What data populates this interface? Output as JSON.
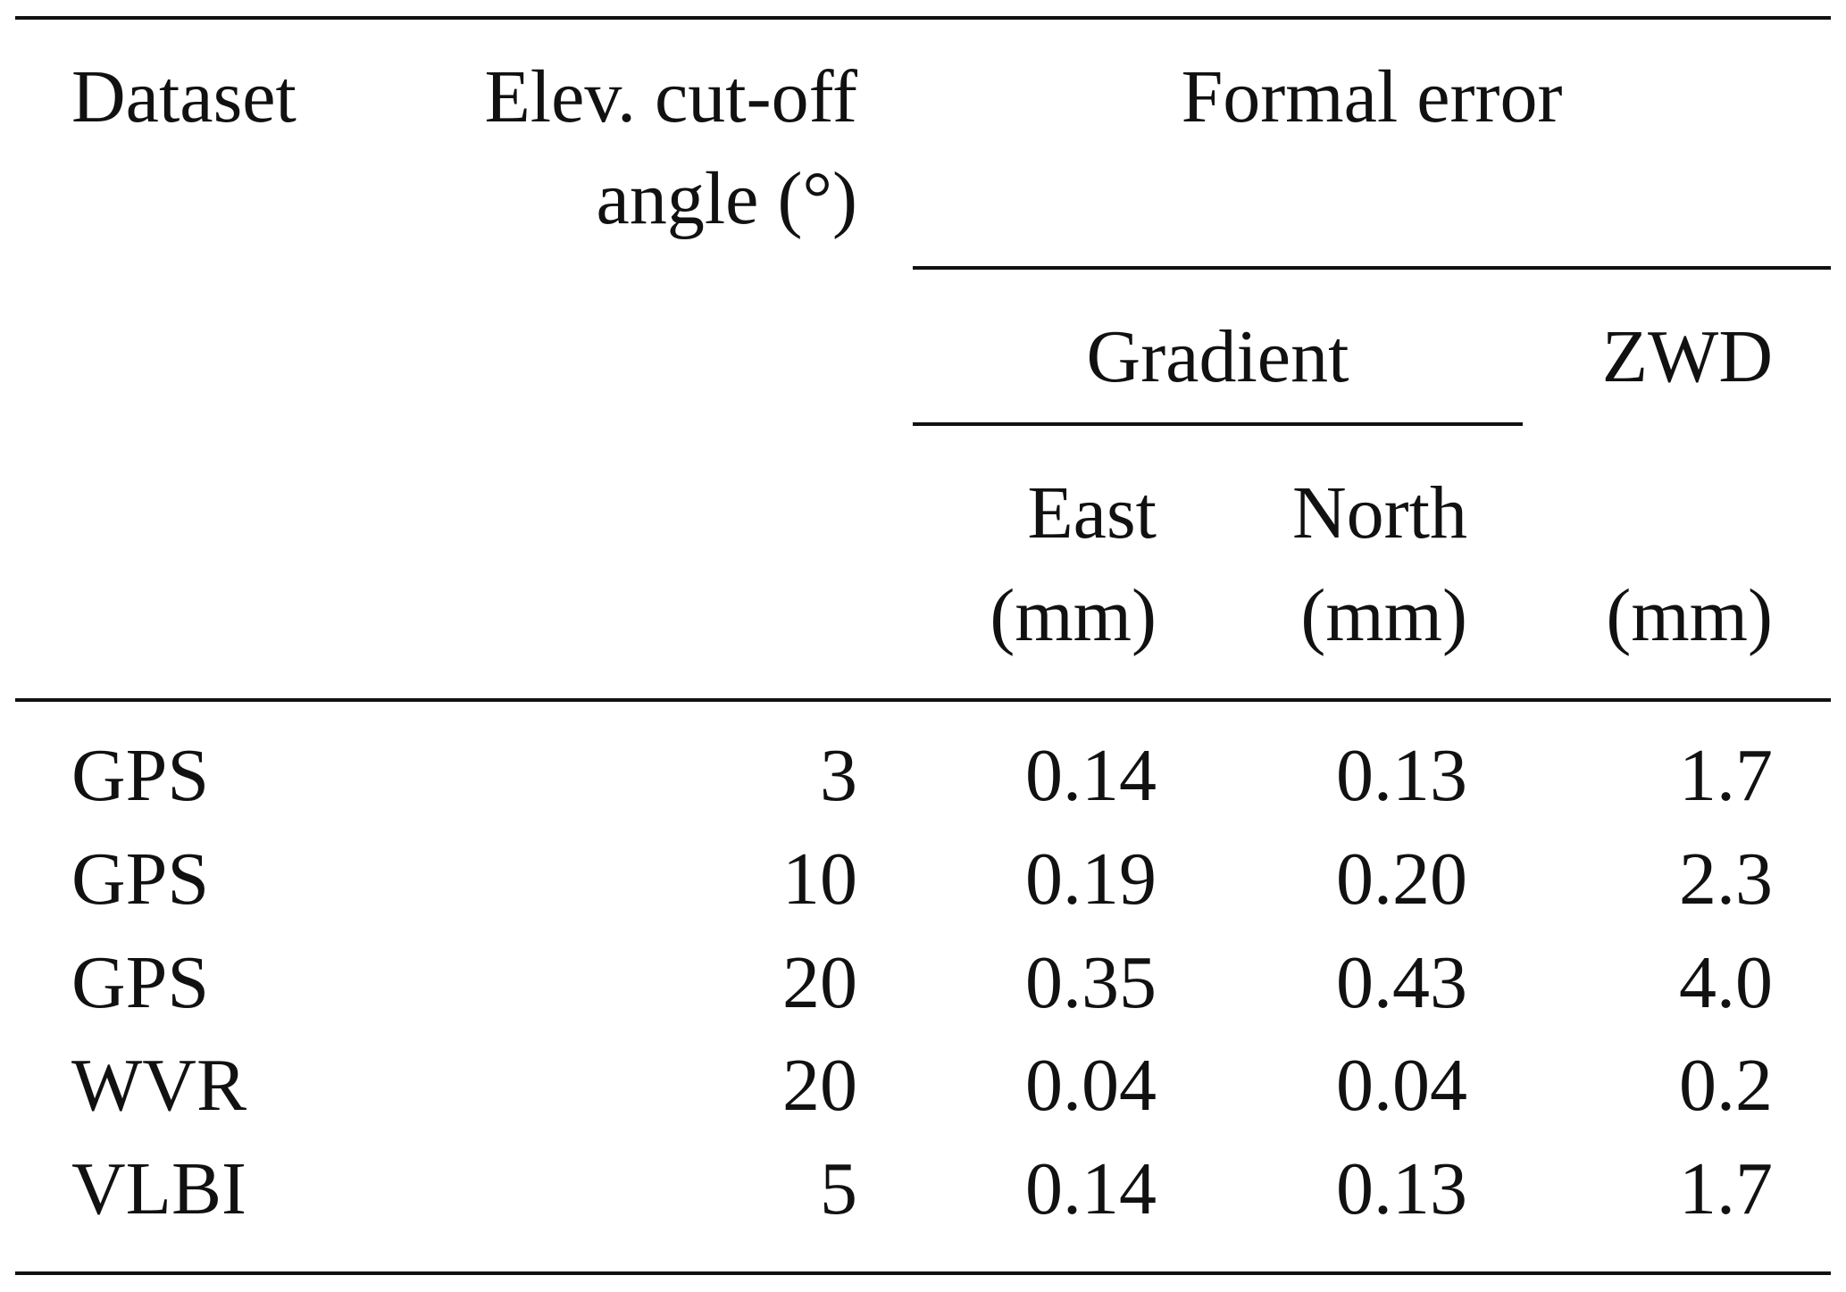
{
  "table": {
    "headers": {
      "dataset": "Dataset",
      "elev_line1": "Elev. cut-off",
      "elev_line2": "angle (°)",
      "formal_error": "Formal error",
      "gradient": "Gradient",
      "zwd": "ZWD",
      "east": "East",
      "north": "North",
      "unit_mm": "(mm)"
    },
    "rows": [
      {
        "dataset": "GPS",
        "elev": "3",
        "east": "0.14",
        "north": "0.13",
        "zwd": "1.7"
      },
      {
        "dataset": "GPS",
        "elev": "10",
        "east": "0.19",
        "north": "0.20",
        "zwd": "2.3"
      },
      {
        "dataset": "GPS",
        "elev": "20",
        "east": "0.35",
        "north": "0.43",
        "zwd": "4.0"
      },
      {
        "dataset": "WVR",
        "elev": "20",
        "east": "0.04",
        "north": "0.04",
        "zwd": "0.2"
      },
      {
        "dataset": "VLBI",
        "elev": "5",
        "east": "0.14",
        "north": "0.13",
        "zwd": "1.7"
      }
    ]
  }
}
